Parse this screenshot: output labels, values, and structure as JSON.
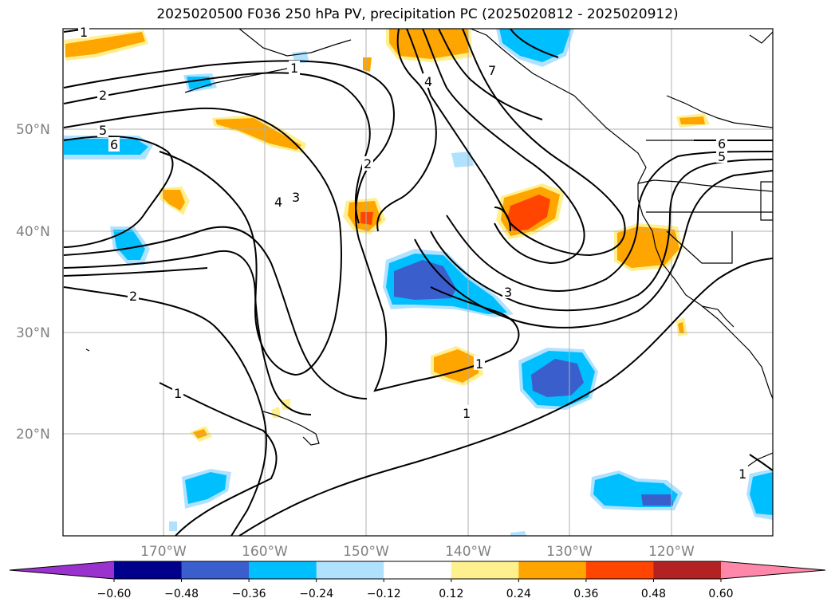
{
  "title": "2025020500 F036 250 hPa PV, precipitation PC (2025020812 - 2025020912)",
  "lat_labels": [
    "50°N",
    "40°N",
    "30°N",
    "20°N"
  ],
  "lon_labels": [
    "170°W",
    "160°W",
    "150°W",
    "140°W",
    "130°W",
    "120°W"
  ],
  "pv_contour_labels": [
    "1",
    "2",
    "5",
    "6",
    "1",
    "4",
    "7",
    "2",
    "3",
    "4",
    "2",
    "3",
    "1",
    "1",
    "1",
    "6",
    "5",
    "1"
  ],
  "colorbar": {
    "ticks": [
      "−0.60",
      "−0.48",
      "−0.36",
      "−0.24",
      "−0.12",
      "0.12",
      "0.24",
      "0.36",
      "0.48",
      "0.60"
    ],
    "colors": [
      "#9a32cd",
      "#00008b",
      "#3a5fcd",
      "#00bfff",
      "#b0e2ff",
      "#ffffff",
      "#fff08f",
      "#ffa500",
      "#ff4500",
      "#b22222",
      "#ff88aa"
    ]
  }
}
